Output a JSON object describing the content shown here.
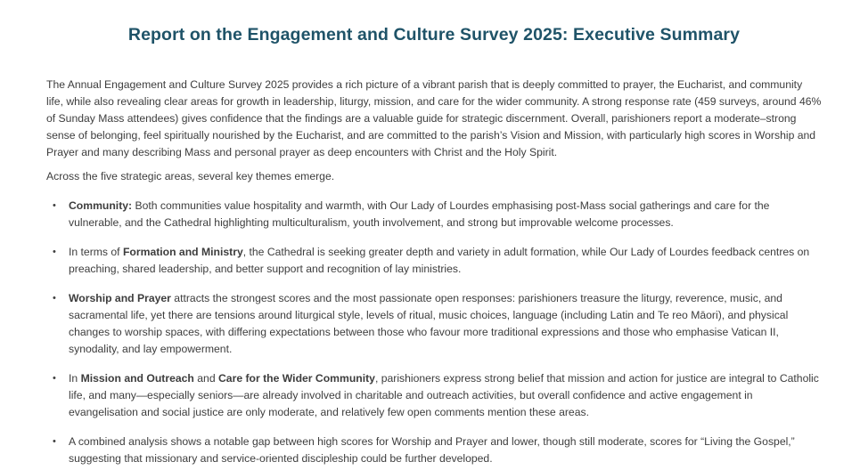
{
  "document": {
    "title": "Report on the Engagement and Culture Survey 2025: Executive Summary",
    "paragraphs": [
      "The Annual Engagement and Culture Survey 2025 provides a rich picture of a vibrant parish that is deeply committed to prayer, the Eucharist, and community life, while also revealing clear areas for growth in leadership, liturgy, mission, and care for the wider community. A strong response rate (459 surveys, around 46% of Sunday Mass attendees) gives confidence that the findings are a valuable guide for strategic discernment. Overall, parishioners report a moderate–strong sense of belonging, feel spiritually nourished by the Eucharist, and are committed to the parish’s Vision and Mission, with particularly high scores in Worship and Prayer and many describing Mass and personal prayer as deep encounters with Christ and the Holy Spirit.",
      "Across the five strategic areas, several key themes emerge."
    ],
    "bullet_icon": "•",
    "bullets": [
      {
        "segments": [
          {
            "text": "Community:",
            "bold": true
          },
          {
            "text": " Both communities value hospitality and warmth, with Our Lady of Lourdes emphasising post-Mass social gatherings and care for the vulnerable, and the Cathedral highlighting multiculturalism, youth involvement, and strong but improvable welcome processes.",
            "bold": false
          }
        ]
      },
      {
        "segments": [
          {
            "text": "In terms of ",
            "bold": false
          },
          {
            "text": "Formation and Ministry",
            "bold": true
          },
          {
            "text": ", the Cathedral is seeking greater depth and variety in adult formation, while Our Lady of Lourdes feedback centres on preaching, shared leadership, and better support and recognition of lay ministries.",
            "bold": false
          }
        ]
      },
      {
        "segments": [
          {
            "text": "Worship and Prayer",
            "bold": true
          },
          {
            "text": " attracts the strongest scores and the most passionate open responses: parishioners treasure the liturgy, reverence, music, and sacramental life, yet there are tensions around liturgical style, levels of ritual, music choices, language (including Latin and Te reo Māori), and physical changes to worship spaces, with differing expectations between those who favour more traditional expressions and those who emphasise Vatican II, synodality, and lay empowerment.",
            "bold": false
          }
        ]
      },
      {
        "segments": [
          {
            "text": "In ",
            "bold": false
          },
          {
            "text": "Mission and Outreach",
            "bold": true
          },
          {
            "text": " and ",
            "bold": false
          },
          {
            "text": "Care for the Wider Community",
            "bold": true
          },
          {
            "text": ", parishioners express strong belief that mission and action for justice are integral to Catholic life, and many—especially seniors—are already involved in charitable and outreach activities, but overall confidence and active engagement in evangelisation and social justice are only moderate, and relatively few open comments mention these areas.",
            "bold": false
          }
        ]
      },
      {
        "segments": [
          {
            "text": "A combined analysis shows a notable gap between high scores for Worship and Prayer and lower, though still moderate, scores for “Living the Gospel,” suggesting that missionary and service-oriented discipleship could be further developed.",
            "bold": false
          }
        ]
      }
    ],
    "colors": {
      "title": "#1f5368",
      "body": "#3d3d3d",
      "background": "#ffffff"
    }
  }
}
